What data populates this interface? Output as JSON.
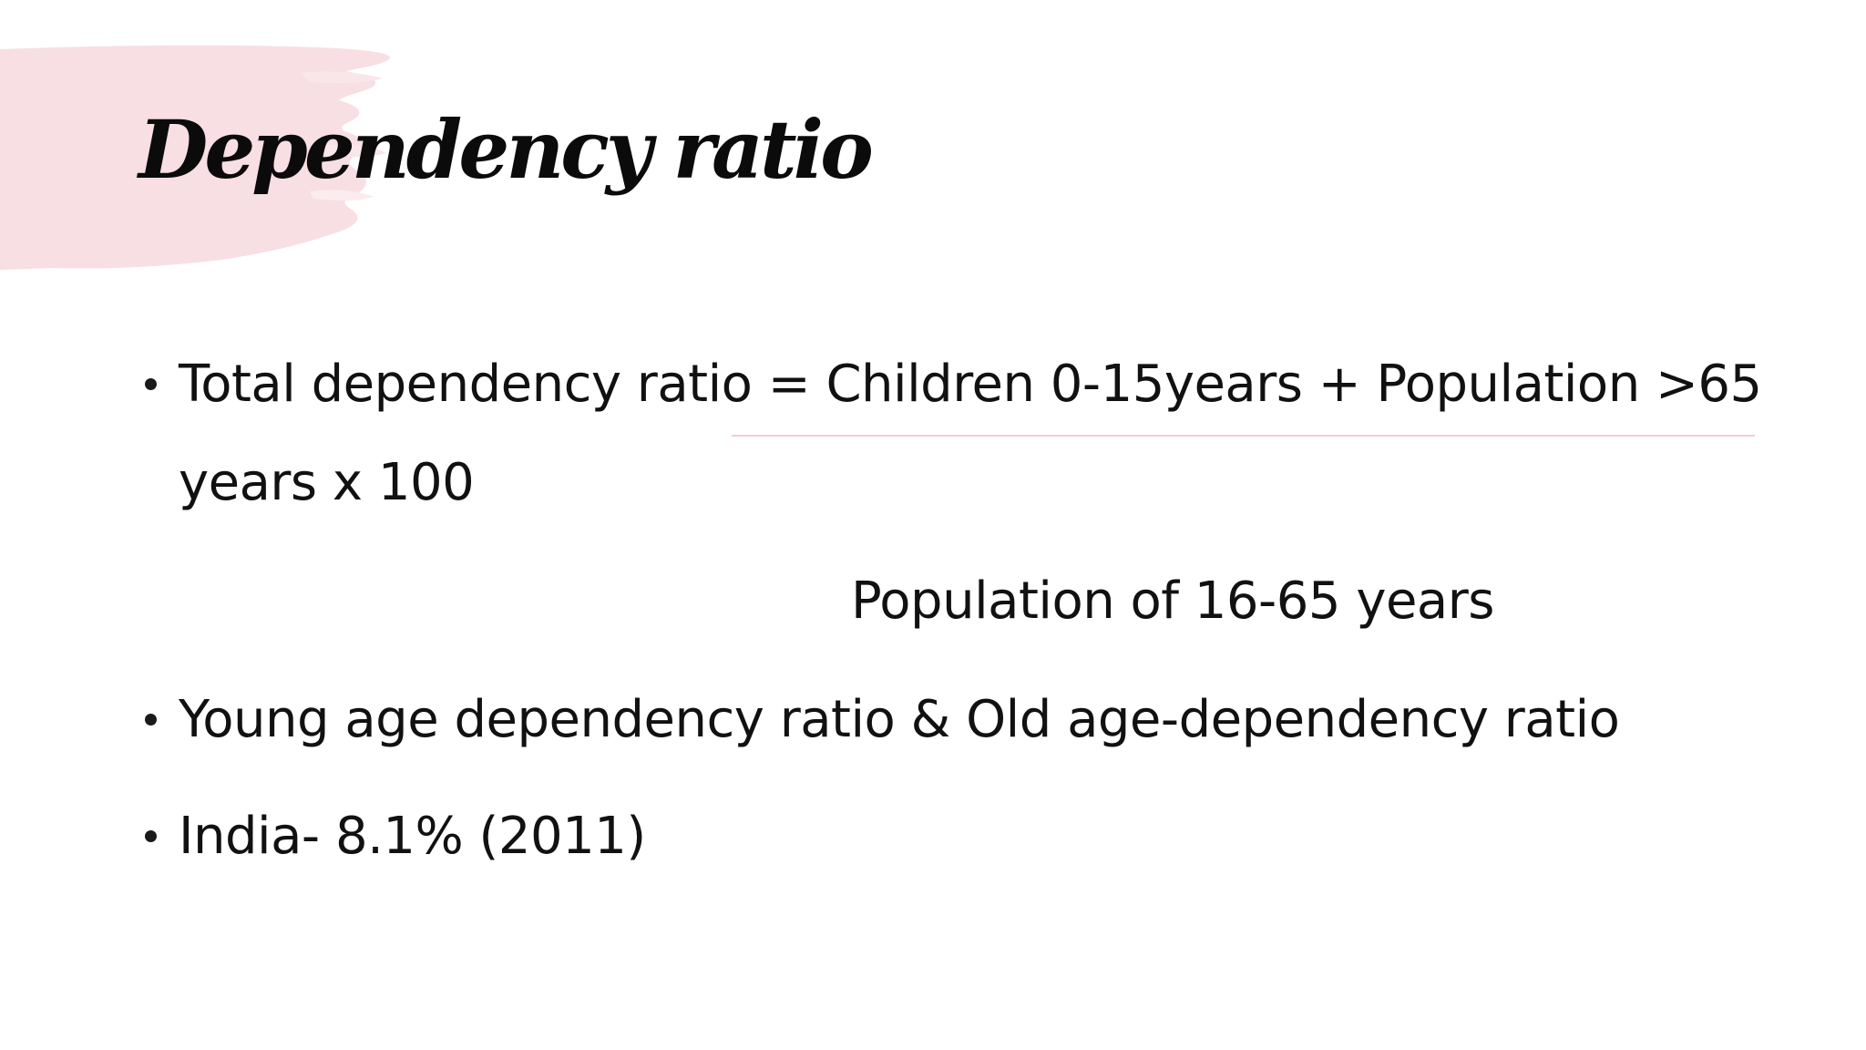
{
  "slide": {
    "title": "Dependency ratio",
    "formula": {
      "numerator_line1": "Total dependency ratio = Children 0-15years + Population >65",
      "numerator_line2": "years  x   100",
      "denominator": "Population of 16-65 years"
    },
    "bullets": [
      "Young age dependency ratio & Old age-dependency ratio",
      "India- 8.1% (2011)"
    ]
  },
  "colors": {
    "background": "#ffffff",
    "brush_accent": "#f7dfe4",
    "text": "#111111",
    "fraction_rule": "#f2cdd5"
  }
}
